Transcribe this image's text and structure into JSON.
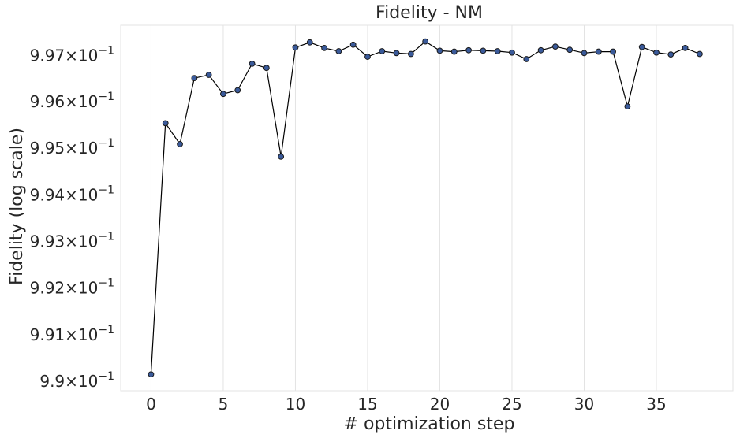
{
  "chart_data": {
    "type": "line",
    "title": "Fidelity - NM",
    "xlabel": "# optimization step",
    "ylabel": "Fidelity (log scale)",
    "y_scale": "log",
    "grid": true,
    "grid_axis": "x",
    "line_color": "#000000",
    "marker_face_color": "#3a5a9a",
    "marker_edge_color": "#1a1a1a",
    "xlim": [
      -2.1,
      40.3
    ],
    "ylim": [
      0.9898,
      0.99765
    ],
    "x_ticks": [
      0,
      5,
      10,
      15,
      20,
      25,
      30,
      35
    ],
    "x_tick_labels": [
      "0",
      "5",
      "10",
      "15",
      "20",
      "25",
      "30",
      "35"
    ],
    "y_ticks": [
      0.99,
      0.991,
      0.992,
      0.993,
      0.994,
      0.995,
      0.996,
      0.997
    ],
    "y_tick_mantissas": [
      "9.9",
      "9.91",
      "9.92",
      "9.93",
      "9.94",
      "9.95",
      "9.96",
      "9.97"
    ],
    "y_tick_suffix": "×10",
    "y_tick_exponent": "−1",
    "series": [
      {
        "x": [
          0,
          1,
          2,
          3,
          4,
          5,
          6,
          7,
          8,
          9,
          10,
          11,
          12,
          13,
          14,
          15,
          16,
          17,
          18,
          19,
          20,
          21,
          22,
          23,
          24,
          25,
          26,
          27,
          28,
          29,
          30,
          31,
          32,
          33,
          34,
          35,
          36,
          37,
          38
        ],
        "y": [
          0.99015,
          0.99554,
          0.99509,
          0.99651,
          0.99658,
          0.99617,
          0.99625,
          0.99682,
          0.99673,
          0.99482,
          0.99717,
          0.99728,
          0.99716,
          0.99709,
          0.99723,
          0.99697,
          0.99709,
          0.99705,
          0.99703,
          0.9973,
          0.9971,
          0.99708,
          0.99711,
          0.9971,
          0.99709,
          0.99706,
          0.99692,
          0.99711,
          0.99719,
          0.99712,
          0.99705,
          0.99708,
          0.99708,
          0.9959,
          0.99718,
          0.99706,
          0.99702,
          0.99716,
          0.99703
        ]
      }
    ]
  }
}
